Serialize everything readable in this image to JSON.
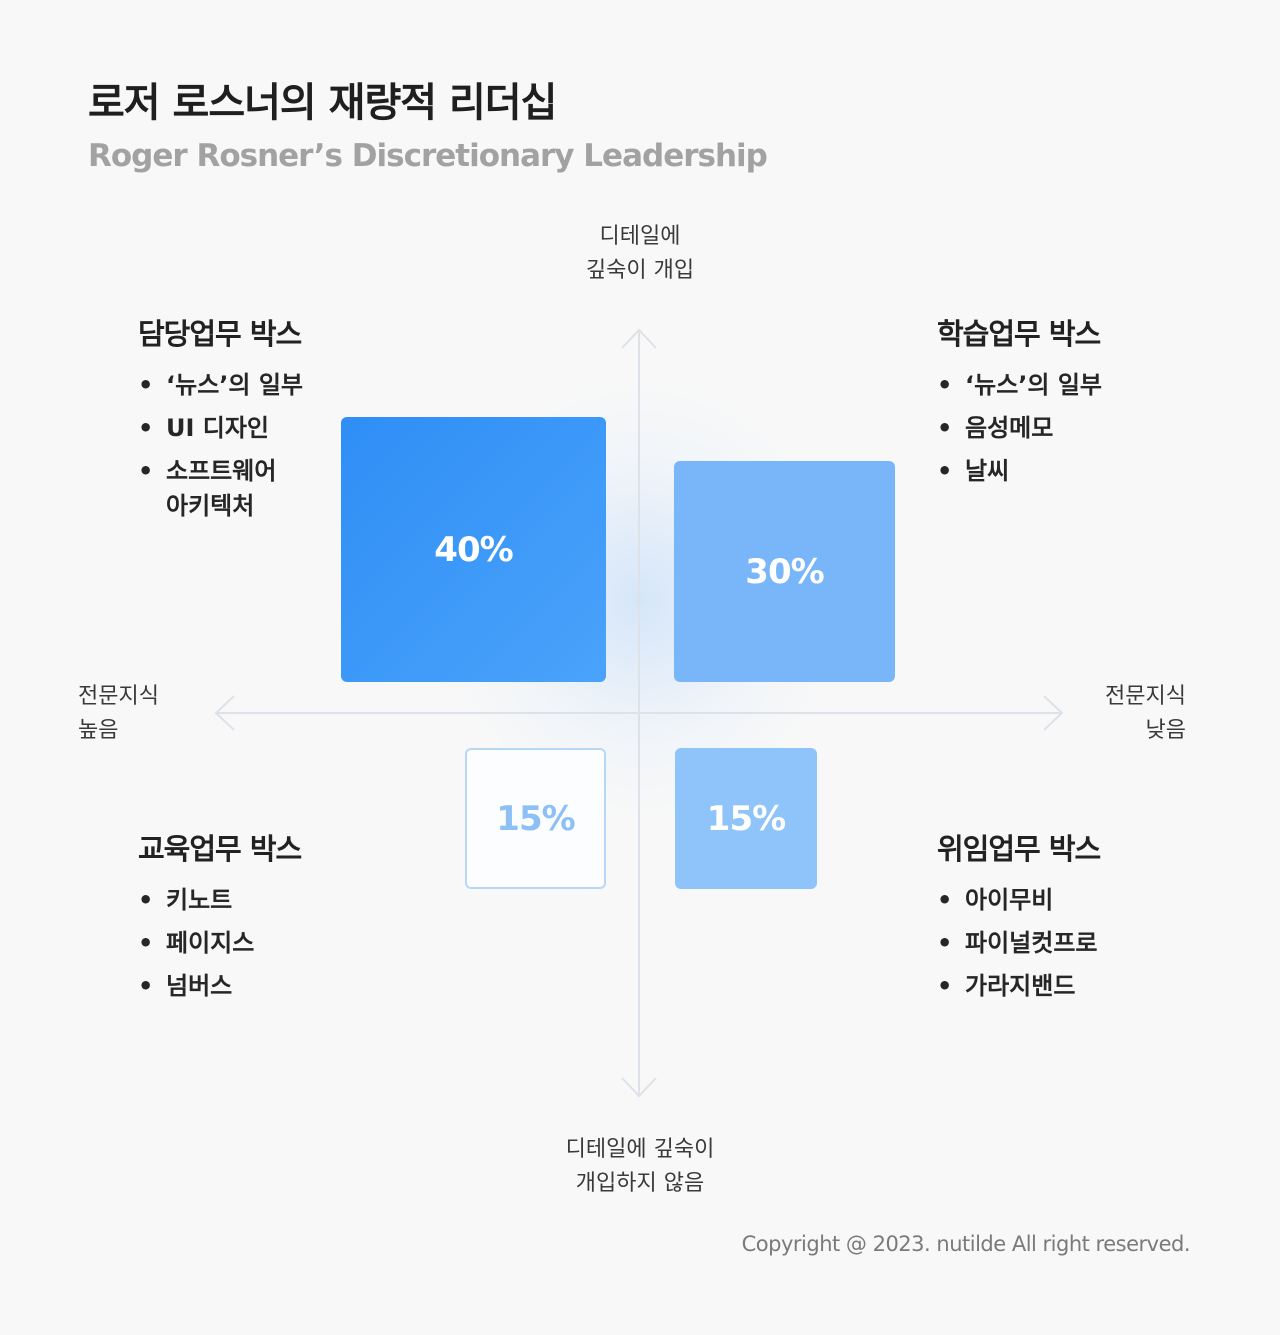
{
  "header": {
    "title": "로저 로스너의 재량적 리더십",
    "subtitle": "Roger Rosner’s Discretionary Leadership"
  },
  "axes": {
    "top": [
      "디테일에",
      "깊숙이 개입"
    ],
    "bottom": [
      "디테일에 깊숙이",
      "개입하지 않음"
    ],
    "left": [
      "전문지식",
      "높음"
    ],
    "right": [
      "전문지식",
      "낮음"
    ]
  },
  "boxes": {
    "top_left": "40%",
    "top_right": "30%",
    "bottom_left": "15%",
    "bottom_right": "15%"
  },
  "quadrants": {
    "top_left": {
      "title": "담당업무 박스",
      "items": [
        "‘뉴스’의 일부",
        "UI 디자인",
        "소프트웨어\n아키텍처"
      ]
    },
    "top_right": {
      "title": "학습업무 박스",
      "items": [
        "‘뉴스’의 일부",
        "음성메모",
        "날씨"
      ]
    },
    "bottom_left": {
      "title": "교육업무 박스",
      "items": [
        "키노트",
        "페이지스",
        "넘버스"
      ]
    },
    "bottom_right": {
      "title": "위임업무 박스",
      "items": [
        "아이무비",
        "파이널컷프로",
        "가라지밴드"
      ]
    }
  },
  "footer": "Copyright @ 2023. nutilde All right reserved.",
  "colors": {
    "box_dark": "#3a98f8",
    "box_mid": "#78b6f9",
    "box_light": "#8fc4fa",
    "box_outline": "#b8d7f7",
    "axis": "#dde2e8"
  }
}
